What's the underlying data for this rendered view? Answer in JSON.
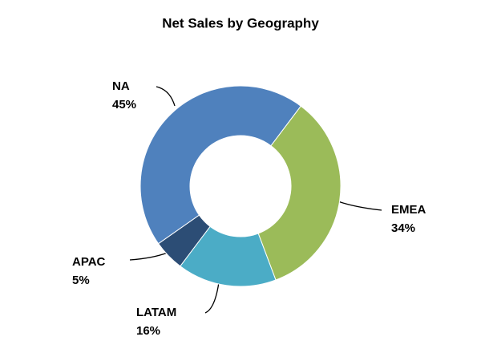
{
  "chart_data": {
    "type": "donut",
    "title": "Net Sales by Geography",
    "categories": [
      "EMEA",
      "LATAM",
      "APAC",
      "NA"
    ],
    "values": [
      34,
      16,
      5,
      45
    ],
    "value_labels": [
      "34%",
      "16%",
      "5%",
      "45%"
    ],
    "colors": [
      "#9bbb59",
      "#4bacc6",
      "#2c4d75",
      "#4f81bd"
    ]
  }
}
